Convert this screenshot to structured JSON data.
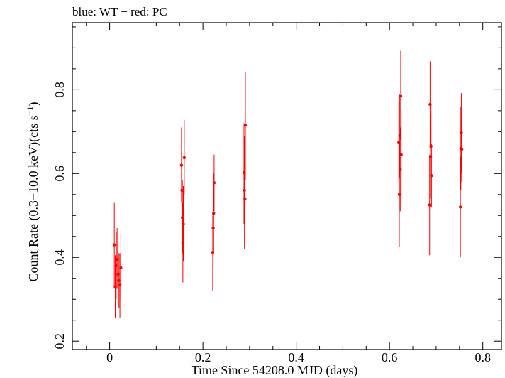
{
  "chart_data": {
    "type": "scatter",
    "title": "blue: WT − red: PC",
    "xlabel": "Time Since 54208.0 MJD (days)",
    "ylabel_main": "Count Rate (0.3−10.0 keV)(cts s",
    "ylabel_sup": "−1",
    "ylabel_end": ")",
    "xlim": [
      -0.08,
      0.84
    ],
    "ylim": [
      0.18,
      0.96
    ],
    "x_ticks": [
      0,
      0.2,
      0.4,
      0.6,
      0.8
    ],
    "x_tick_labels": [
      "0",
      "0.2",
      "0.4",
      "0.6",
      "0.8"
    ],
    "y_ticks": [
      0.2,
      0.4,
      0.6,
      0.8
    ],
    "y_tick_labels": [
      "0.2",
      "0.4",
      "0.6",
      "0.8"
    ],
    "grid": false,
    "colors": {
      "PC": "#ff0000",
      "WT": "#0000ff",
      "frame": "#000000"
    },
    "series": [
      {
        "name": "PC",
        "points": [
          {
            "x": 0.01,
            "y": 0.43,
            "lo": 0.33,
            "hi": 0.53
          },
          {
            "x": 0.012,
            "y": 0.33,
            "lo": 0.255,
            "hi": 0.405
          },
          {
            "x": 0.014,
            "y": 0.38,
            "lo": 0.3,
            "hi": 0.46
          },
          {
            "x": 0.016,
            "y": 0.395,
            "lo": 0.325,
            "hi": 0.47
          },
          {
            "x": 0.018,
            "y": 0.36,
            "lo": 0.29,
            "hi": 0.43
          },
          {
            "x": 0.02,
            "y": 0.345,
            "lo": 0.28,
            "hi": 0.41
          },
          {
            "x": 0.022,
            "y": 0.335,
            "lo": 0.255,
            "hi": 0.41
          },
          {
            "x": 0.024,
            "y": 0.375,
            "lo": 0.3,
            "hi": 0.455
          },
          {
            "x": 0.154,
            "y": 0.62,
            "lo": 0.53,
            "hi": 0.71
          },
          {
            "x": 0.155,
            "y": 0.56,
            "lo": 0.47,
            "hi": 0.65
          },
          {
            "x": 0.156,
            "y": 0.495,
            "lo": 0.41,
            "hi": 0.585
          },
          {
            "x": 0.157,
            "y": 0.435,
            "lo": 0.34,
            "hi": 0.53
          },
          {
            "x": 0.158,
            "y": 0.48,
            "lo": 0.39,
            "hi": 0.57
          },
          {
            "x": 0.16,
            "y": 0.638,
            "lo": 0.55,
            "hi": 0.728
          },
          {
            "x": 0.221,
            "y": 0.412,
            "lo": 0.32,
            "hi": 0.5
          },
          {
            "x": 0.222,
            "y": 0.47,
            "lo": 0.38,
            "hi": 0.56
          },
          {
            "x": 0.223,
            "y": 0.505,
            "lo": 0.41,
            "hi": 0.6
          },
          {
            "x": 0.224,
            "y": 0.578,
            "lo": 0.51,
            "hi": 0.645
          },
          {
            "x": 0.288,
            "y": 0.602,
            "lo": 0.48,
            "hi": 0.72
          },
          {
            "x": 0.289,
            "y": 0.56,
            "lo": 0.42,
            "hi": 0.69
          },
          {
            "x": 0.29,
            "y": 0.54,
            "lo": 0.44,
            "hi": 0.64
          },
          {
            "x": 0.291,
            "y": 0.715,
            "lo": 0.585,
            "hi": 0.842
          },
          {
            "x": 0.62,
            "y": 0.675,
            "lo": 0.58,
            "hi": 0.77
          },
          {
            "x": 0.621,
            "y": 0.55,
            "lo": 0.425,
            "hi": 0.675
          },
          {
            "x": 0.622,
            "y": 0.69,
            "lo": 0.59,
            "hi": 0.79
          },
          {
            "x": 0.623,
            "y": 0.61,
            "lo": 0.51,
            "hi": 0.71
          },
          {
            "x": 0.624,
            "y": 0.785,
            "lo": 0.68,
            "hi": 0.893
          },
          {
            "x": 0.625,
            "y": 0.645,
            "lo": 0.54,
            "hi": 0.75
          },
          {
            "x": 0.686,
            "y": 0.525,
            "lo": 0.405,
            "hi": 0.645
          },
          {
            "x": 0.687,
            "y": 0.765,
            "lo": 0.66,
            "hi": 0.868
          },
          {
            "x": 0.688,
            "y": 0.64,
            "lo": 0.54,
            "hi": 0.74
          },
          {
            "x": 0.689,
            "y": 0.665,
            "lo": 0.565,
            "hi": 0.765
          },
          {
            "x": 0.69,
            "y": 0.595,
            "lo": 0.52,
            "hi": 0.67
          },
          {
            "x": 0.752,
            "y": 0.52,
            "lo": 0.4,
            "hi": 0.64
          },
          {
            "x": 0.753,
            "y": 0.66,
            "lo": 0.56,
            "hi": 0.76
          },
          {
            "x": 0.754,
            "y": 0.698,
            "lo": 0.6,
            "hi": 0.792
          },
          {
            "x": 0.755,
            "y": 0.658,
            "lo": 0.58,
            "hi": 0.735
          }
        ]
      }
    ]
  }
}
